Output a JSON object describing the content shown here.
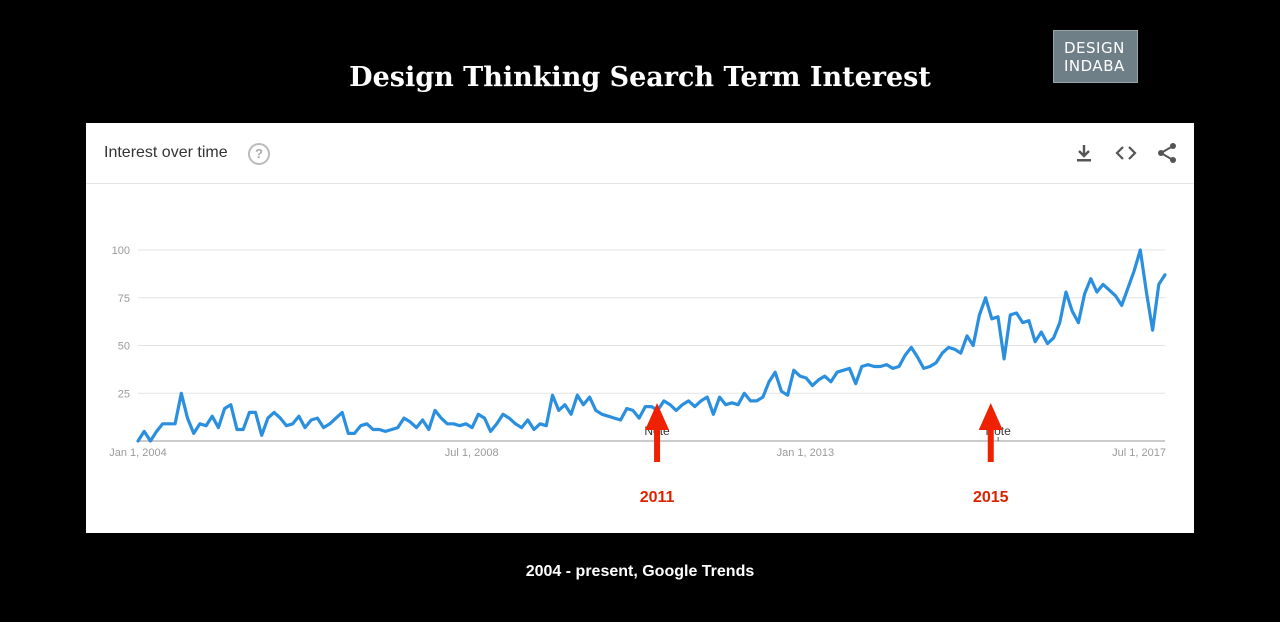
{
  "slide": {
    "title": "Design Thinking Search Term Interest",
    "caption": "2004 - present, Google Trends"
  },
  "logo": {
    "line1": "DESIGN",
    "line2": "INDABA"
  },
  "card": {
    "title": "Interest over time",
    "help_icon": "help-icon",
    "icons": [
      "download-icon",
      "embed-code-icon",
      "share-icon"
    ]
  },
  "colors": {
    "line": "#2b8fe0",
    "grid": "#e3e3e3",
    "arrow": "#ee2200",
    "annotation": "#dd2200"
  },
  "chart_data": {
    "type": "line",
    "title": "",
    "xlabel": "",
    "ylabel": "",
    "ylim": [
      0,
      100
    ],
    "yticks": [
      25,
      50,
      75,
      100
    ],
    "xtick_labels": [
      "Jan 1, 2004",
      "Jul 1, 2008",
      "Jan 1, 2013",
      "Jul 1, 2017"
    ],
    "xtick_values": [
      2004.0,
      2008.5,
      2013.0,
      2017.5
    ],
    "x_start": 2004.0,
    "x_end": 2017.85,
    "grid": true,
    "series": [
      {
        "values": [
          0,
          5,
          0,
          5,
          9,
          9,
          9,
          25,
          12,
          4,
          9,
          8,
          13,
          7,
          17,
          19,
          6,
          6,
          15,
          15,
          3,
          12,
          15,
          12,
          8,
          9,
          13,
          7,
          11,
          12,
          7,
          9,
          12,
          15,
          4,
          4,
          8,
          9,
          6,
          6,
          5,
          6,
          7,
          12,
          10,
          7,
          11,
          6,
          16,
          12,
          9,
          9,
          8,
          9,
          7,
          14,
          12,
          5,
          9,
          14,
          12,
          9,
          7,
          11,
          6,
          9,
          8,
          24,
          16,
          19,
          14,
          24,
          19,
          23,
          16,
          14,
          13,
          12,
          11,
          17,
          16,
          12,
          18,
          18,
          16,
          21,
          19,
          16,
          19,
          21,
          18,
          21,
          23,
          14,
          23,
          19,
          20,
          19,
          25,
          21,
          21,
          23,
          31,
          36,
          26,
          24,
          37,
          34,
          33,
          29,
          32,
          34,
          31,
          36,
          37,
          38,
          30,
          39,
          40,
          39,
          39,
          40,
          38,
          39,
          45,
          49,
          44,
          38,
          39,
          41,
          46,
          49,
          48,
          46,
          55,
          50,
          66,
          75,
          64,
          65,
          43,
          66,
          67,
          62,
          63,
          52,
          57,
          51,
          54,
          62,
          78,
          68,
          62,
          77,
          85,
          78,
          82,
          79,
          76,
          71,
          80,
          89,
          100,
          78,
          58,
          82,
          87
        ]
      }
    ],
    "annotations": [
      {
        "text": "Note",
        "x": 2011.0
      },
      {
        "text": "Note",
        "x": 2015.6
      }
    ],
    "arrows": [
      {
        "label": "2011",
        "x": 2011.0
      },
      {
        "label": "2015",
        "x": 2015.5
      }
    ]
  }
}
